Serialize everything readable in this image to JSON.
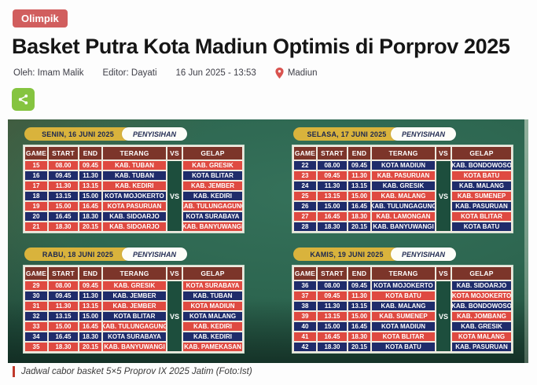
{
  "page": {
    "category_tag": "Olimpik",
    "headline": "Basket Putra Kota Madiun Optimis di Porprov 2025",
    "byline": {
      "author": "Oleh: Imam Malik",
      "editor": "Editor: Dayati",
      "datetime": "16 Jun 2025 - 13:53",
      "location": "Madiun"
    },
    "caption": "Jadwal cabor basket 5×5 Proprov IX 2025 Jatim (Foto:Ist)"
  },
  "schedule_image": {
    "stage_label": "PENYISIHAN",
    "columns": [
      "GAME",
      "START",
      "END",
      "TERANG",
      "VS",
      "GELAP"
    ],
    "vs_label": "VS",
    "tables": [
      {
        "date": "SENIN, 16 JUNI 2025",
        "first_row_color": "red",
        "rows": [
          [
            "15",
            "08.00",
            "09.45",
            "KAB. TUBAN",
            "KAB. GRESIK"
          ],
          [
            "16",
            "09.45",
            "11.30",
            "KAB. TUBAN",
            "KOTA BLITAR"
          ],
          [
            "17",
            "11.30",
            "13.15",
            "KAB. KEDIRI",
            "KAB. JEMBER"
          ],
          [
            "18",
            "13.15",
            "15.00",
            "KOTA MOJOKERTO",
            "KAB. KEDIRI"
          ],
          [
            "19",
            "15.00",
            "16.45",
            "KOTA PASURUAN",
            "KAB. TULUNGAGUNG"
          ],
          [
            "20",
            "16.45",
            "18.30",
            "KAB. SIDOARJO",
            "KOTA SURABAYA"
          ],
          [
            "21",
            "18.30",
            "20.15",
            "KAB. SIDOARJO",
            "KAB. BANYUWANGI"
          ]
        ]
      },
      {
        "date": "SELASA, 17 JUNI 2025",
        "first_row_color": "blue",
        "rows": [
          [
            "22",
            "08.00",
            "09.45",
            "KOTA MADIUN",
            "KAB. BONDOWOSO"
          ],
          [
            "23",
            "09.45",
            "11.30",
            "KAB. PASURUAN",
            "KOTA BATU"
          ],
          [
            "24",
            "11.30",
            "13.15",
            "KAB. GRESIK",
            "KAB. MALANG"
          ],
          [
            "25",
            "13.15",
            "15.00",
            "KAB. MALANG",
            "KAB. SUMENEP"
          ],
          [
            "26",
            "15.00",
            "16.45",
            "KAB. TULUNGAGUNG",
            "KAB. PASURUAN"
          ],
          [
            "27",
            "16.45",
            "18.30",
            "KAB. LAMONGAN",
            "KOTA BLITAR"
          ],
          [
            "28",
            "18.30",
            "20.15",
            "KAB. BANYUWANGI",
            "KOTA BATU"
          ]
        ]
      },
      {
        "date": "RABU, 18 JUNI 2025",
        "first_row_color": "red",
        "rows": [
          [
            "29",
            "08.00",
            "09.45",
            "KAB. GRESIK",
            "KOTA SURABAYA"
          ],
          [
            "30",
            "09.45",
            "11.30",
            "KAB. JEMBER",
            "KAB. TUBAN"
          ],
          [
            "31",
            "11.30",
            "13.15",
            "KAB. JEMBER",
            "KOTA MADIUN"
          ],
          [
            "32",
            "13.15",
            "15.00",
            "KOTA BLITAR",
            "KOTA MALANG"
          ],
          [
            "33",
            "15.00",
            "16.45",
            "KAB. TULUNGAGUNG",
            "KAB. KEDIRI"
          ],
          [
            "34",
            "16.45",
            "18.30",
            "KOTA SURABAYA",
            "KAB. KEDIRI"
          ],
          [
            "35",
            "18.30",
            "20.15",
            "KAB. BANYUWANGI",
            "KAB. PAMEKASAN"
          ]
        ]
      },
      {
        "date": "KAMIS, 19 JUNI 2025",
        "first_row_color": "blue",
        "rows": [
          [
            "36",
            "08.00",
            "09.45",
            "KOTA MOJOKERTO",
            "KAB. SIDOARJO"
          ],
          [
            "37",
            "09.45",
            "11.30",
            "KOTA BATU",
            "KOTA MOJOKERTO"
          ],
          [
            "38",
            "11.30",
            "13.15",
            "KAB. MALANG",
            "KAB. BONDOWOSO"
          ],
          [
            "39",
            "13.15",
            "15.00",
            "KAB. SUMENEP",
            "KAB. JOMBANG"
          ],
          [
            "40",
            "15.00",
            "16.45",
            "KOTA MADIUN",
            "KAB. GRESIK"
          ],
          [
            "41",
            "16.45",
            "18.30",
            "KOTA BLITAR",
            "KOTA MALANG"
          ],
          [
            "42",
            "18.30",
            "20.15",
            "KOTA BATU",
            "KAB. PASURUAN"
          ]
        ]
      }
    ]
  },
  "colors": {
    "tag_bg": "#d15e5e",
    "share_bg": "#85c440",
    "pin_red": "#d9534f",
    "date_pill_bg": "#d9b33c",
    "stage_pill_bg": "#fdfdf8",
    "header_bg": "#7c352a",
    "red_row": "#df4a41",
    "blue_row": "#1f2c6b",
    "vs_bg": "#1d4e3d",
    "caption_bar": "#c0392b"
  }
}
